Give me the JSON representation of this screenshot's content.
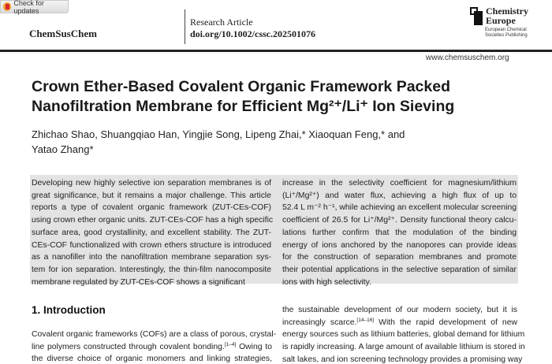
{
  "check_updates": {
    "label": "Check for updates",
    "icon": "check-for-updates-icon"
  },
  "header": {
    "journal": "ChemSusChem",
    "article_type": "Research Article",
    "doi": "doi.org/10.1002/cssc.202501076",
    "publisher_line1": "Chemistry",
    "publisher_line2": "Europe",
    "publisher_sub1": "European Chemical",
    "publisher_sub2": "Societies Publishing",
    "website": "www.chemsuschem.org"
  },
  "title": {
    "line1": "Crown Ether-Based Covalent Organic Framework Packed",
    "line2": "Nanofiltration Membrane for Efficient Mg²⁺/Li⁺ Ion Sieving"
  },
  "authors": {
    "line1": "Zhichao Shao, Shuangqiao Han, Yingjie Song, Lipeng Zhai,* Xiaoquan Feng,* and",
    "line2": "Yatao Zhang*"
  },
  "abstract": {
    "left": [
      "Developing new highly selective ion separation membranes is of",
      "great significance, but it remains a major challenge. This article",
      "reports a type of covalent organic framework (ZUT-CEs-COF)",
      "using crown ether organic units. ZUT-CEs-COF has a high specific",
      "surface area, good crystallinity, and excellent stability. The ZUT-",
      "CEs-COF functionalized with crown ethers structure is introduced",
      "as a nanofiller into the nanofiltration membrane separation sys-",
      "tem for ion separation. Interestingly, the thin-film nanocomposite",
      "membrane regulated by ZUT-CEs-COF shows a significant"
    ],
    "right": [
      "increase in the selectivity coefficient for magnesium/lithium",
      "(Li⁺/Mg²⁺) and water flux, achieving a high flux of up to",
      "52.4 L m⁻² h⁻¹, while achieving an excellent molecular screening",
      "coefficient of 26.5 for Li⁺/Mg²⁺. Density functional theory calcu-",
      "lations further confirm that the modulation of the binding",
      "energy of ions anchored by the nanopores can provide ideas",
      "for the construction of separation membranes and promote",
      "their potential applications in the selective separation of similar",
      "ions with high selectivity."
    ]
  },
  "intro": {
    "heading": "1. Introduction",
    "left": [
      {
        "pre": "Covalent organic frameworks (COFs) are a class of porous, crystal-"
      },
      {
        "pre": "line polymers constructed through covalent bonding.",
        "sup": "[1–4]",
        "post": " Owing to"
      },
      {
        "pre": "the diverse choice of organic monomers and linking strategies,"
      }
    ],
    "right": [
      {
        "pre": "the sustainable development of our modern society, but it is"
      },
      {
        "pre": "increasingly scarce.",
        "sup": "[14–16]",
        "post": " With the rapid development of new"
      },
      {
        "pre": "energy sources such as lithium batteries, global demand for lithium"
      },
      {
        "pre": "is rapidly increasing. A large amount of available lithium is stored in"
      },
      {
        "pre": "salt lakes, and ion screening technology provides a promising way"
      }
    ]
  }
}
